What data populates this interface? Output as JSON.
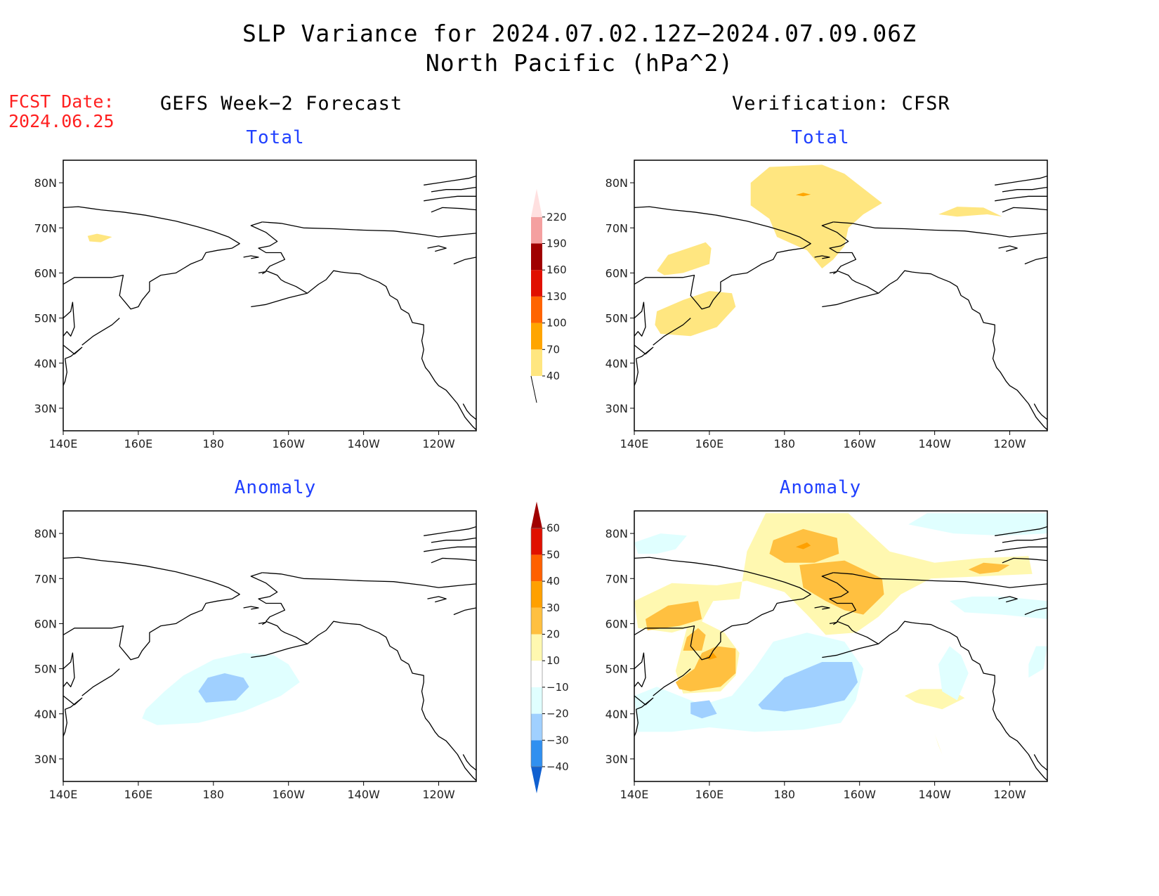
{
  "title": {
    "line1": "SLP Variance for 2024.07.02.12Z−2024.07.09.06Z",
    "line2": "North Pacific (hPa^2)"
  },
  "fcst": {
    "label": "FCST Date:",
    "date": "2024.06.25"
  },
  "columns": {
    "left": "GEFS Week−2 Forecast",
    "right": "Verification: CFSR"
  },
  "rows": {
    "top": "Total",
    "bottom": "Anomaly"
  },
  "map": {
    "lon_range": [
      140,
      250
    ],
    "lat_range": [
      25,
      85
    ],
    "x_ticks": [
      {
        "lon": 140,
        "label": "140E"
      },
      {
        "lon": 160,
        "label": "160E"
      },
      {
        "lon": 180,
        "label": "180"
      },
      {
        "lon": 200,
        "label": "160W"
      },
      {
        "lon": 220,
        "label": "140W"
      },
      {
        "lon": 240,
        "label": "120W"
      }
    ],
    "y_ticks": [
      {
        "lat": 30,
        "label": "30N"
      },
      {
        "lat": 40,
        "label": "40N"
      },
      {
        "lat": 50,
        "label": "50N"
      },
      {
        "lat": 60,
        "label": "60N"
      },
      {
        "lat": 70,
        "label": "70N"
      },
      {
        "lat": 80,
        "label": "80N"
      }
    ]
  },
  "colorbars": {
    "total": {
      "labels": [
        "40",
        "70",
        "100",
        "130",
        "160",
        "190",
        "220"
      ],
      "colors": [
        "#ffe680",
        "#ffa500",
        "#ff6400",
        "#e01000",
        "#a00000",
        "#f4a0a0",
        "#ffe0e0"
      ]
    },
    "anomaly": {
      "labels": [
        "−40",
        "−30",
        "−20",
        "−10",
        "10",
        "20",
        "30",
        "40",
        "50",
        "60"
      ],
      "colors": [
        "#1060d0",
        "#3090f0",
        "#a0d0ff",
        "#e0ffff",
        "#ffffff",
        "#fff8b0",
        "#ffc040",
        "#ffa000",
        "#ff6000",
        "#e01000",
        "#a00000"
      ]
    }
  },
  "fields": {
    "forecast_total": [
      {
        "level": "40-70",
        "color": "#ffe680",
        "pts": [
          [
            146.5,
            68.2
          ],
          [
            149,
            68.7
          ],
          [
            153,
            68
          ],
          [
            150,
            66.8
          ],
          [
            147,
            67
          ]
        ]
      }
    ],
    "forecast_anomaly": [
      {
        "level": "-20--10",
        "color": "#e0ffff",
        "pts": [
          [
            162,
            41
          ],
          [
            167,
            45
          ],
          [
            172,
            48.5
          ],
          [
            180,
            52
          ],
          [
            188,
            53.5
          ],
          [
            196,
            53
          ],
          [
            200,
            51
          ],
          [
            203,
            47
          ],
          [
            198,
            44
          ],
          [
            188,
            40.5
          ],
          [
            176,
            38
          ],
          [
            165,
            37.5
          ],
          [
            161,
            39
          ]
        ]
      },
      {
        "level": "-30--20",
        "color": "#a0d0ff",
        "pts": [
          [
            176,
            45
          ],
          [
            178.5,
            48
          ],
          [
            183,
            49
          ],
          [
            188,
            48
          ],
          [
            189.5,
            46
          ],
          [
            186,
            43
          ],
          [
            178,
            42.5
          ]
        ]
      }
    ],
    "verification_total": [
      {
        "level": "40-70",
        "color": "#ffe680",
        "pts": [
          [
            171,
            80
          ],
          [
            176,
            83.5
          ],
          [
            190,
            84
          ],
          [
            196,
            82
          ],
          [
            206,
            75.5
          ],
          [
            201,
            73
          ],
          [
            197,
            70
          ],
          [
            196,
            66
          ],
          [
            193,
            63
          ],
          [
            190,
            61
          ],
          [
            186,
            65
          ],
          [
            182,
            66.5
          ],
          [
            178,
            68
          ],
          [
            176,
            72
          ],
          [
            171,
            75
          ]
        ]
      },
      {
        "level": "40-70",
        "color": "#ffe680",
        "pts": [
          [
            146,
            60.5
          ],
          [
            149,
            64
          ],
          [
            159,
            66.8
          ],
          [
            160.5,
            65.5
          ],
          [
            160,
            62
          ],
          [
            153,
            60
          ],
          [
            148,
            59.5
          ]
        ]
      },
      {
        "level": "40-70",
        "color": "#ffe680",
        "pts": [
          [
            146,
            51.5
          ],
          [
            153,
            54
          ],
          [
            160,
            56
          ],
          [
            166,
            55.5
          ],
          [
            167,
            52.5
          ],
          [
            162,
            48
          ],
          [
            155,
            46
          ],
          [
            147,
            46.5
          ],
          [
            145.5,
            48.5
          ]
        ]
      },
      {
        "level": "40-70",
        "color": "#ffe680",
        "pts": [
          [
            221,
            73
          ],
          [
            226,
            72.5
          ],
          [
            234,
            73
          ],
          [
            238,
            72.5
          ],
          [
            233,
            74.5
          ],
          [
            226,
            74.7
          ]
        ]
      },
      {
        "level": "70-100",
        "color": "#ffa500",
        "pts": [
          [
            183,
            77.3
          ],
          [
            185,
            77.8
          ],
          [
            187,
            77.4
          ],
          [
            185,
            77
          ]
        ]
      }
    ],
    "verification_anomaly": [
      {
        "level": "10-20",
        "color": "#fff8b0",
        "pts": [
          [
            170,
            76
          ],
          [
            175,
            84.5
          ],
          [
            197,
            84.5
          ],
          [
            208,
            76
          ],
          [
            220,
            73.5
          ],
          [
            232,
            74.5
          ],
          [
            245,
            75
          ],
          [
            246,
            71
          ],
          [
            233,
            70.5
          ],
          [
            219,
            70
          ],
          [
            211,
            66.5
          ],
          [
            205,
            61.5
          ],
          [
            199,
            58
          ],
          [
            191,
            57.5
          ],
          [
            186,
            62
          ],
          [
            180,
            67
          ],
          [
            170,
            69.5
          ],
          [
            162,
            68.5
          ],
          [
            150,
            69
          ],
          [
            140,
            65
          ],
          [
            141,
            59
          ],
          [
            150,
            58
          ],
          [
            154,
            59
          ],
          [
            151,
            49.5
          ],
          [
            153,
            44.5
          ],
          [
            163,
            45
          ],
          [
            167,
            48.5
          ],
          [
            168,
            53.5
          ],
          [
            164,
            58
          ],
          [
            158,
            60.5
          ],
          [
            161,
            65
          ],
          [
            168,
            65.5
          ]
        ]
      },
      {
        "level": "10-20",
        "color": "#fff8b0",
        "pts": [
          [
            212,
            44
          ],
          [
            215,
            42.5
          ],
          [
            222,
            41
          ],
          [
            228,
            43.5
          ],
          [
            224,
            45.5
          ],
          [
            216,
            45.5
          ]
        ]
      },
      {
        "level": "10-20",
        "color": "#fff8b0",
        "pts": [
          [
            220,
            35.5
          ],
          [
            221,
            33
          ],
          [
            222,
            31
          ]
        ]
      },
      {
        "level": "20-30",
        "color": "#ffc040",
        "pts": [
          [
            184,
            73
          ],
          [
            196,
            74
          ],
          [
            206,
            70
          ],
          [
            206.5,
            66.5
          ],
          [
            201,
            62
          ],
          [
            196,
            63
          ],
          [
            191,
            65
          ],
          [
            185,
            68
          ]
        ]
      },
      {
        "level": "20-30",
        "color": "#ffc040",
        "pts": [
          [
            177,
            78.5
          ],
          [
            185,
            81
          ],
          [
            194,
            79
          ],
          [
            194.5,
            75.5
          ],
          [
            188,
            73.5
          ],
          [
            180,
            73.5
          ],
          [
            176,
            75.5
          ]
        ]
      },
      {
        "level": "20-30",
        "color": "#ffc040",
        "pts": [
          [
            143,
            61
          ],
          [
            149,
            64
          ],
          [
            157,
            65
          ],
          [
            158,
            61
          ],
          [
            152,
            59.5
          ],
          [
            143.5,
            58.5
          ]
        ]
      },
      {
        "level": "20-30",
        "color": "#ffc040",
        "pts": [
          [
            151,
            47
          ],
          [
            156,
            50
          ],
          [
            158,
            53.5
          ],
          [
            162,
            55
          ],
          [
            167,
            54.5
          ],
          [
            167,
            49
          ],
          [
            163,
            46
          ],
          [
            155,
            45
          ],
          [
            152,
            45.5
          ]
        ]
      },
      {
        "level": "20-30",
        "color": "#ffc040",
        "pts": [
          [
            153,
            54
          ],
          [
            154,
            57
          ],
          [
            157,
            59
          ],
          [
            159,
            57.5
          ],
          [
            158,
            54
          ]
        ]
      },
      {
        "level": "20-30",
        "color": "#ffc040",
        "pts": [
          [
            229,
            72
          ],
          [
            233,
            73.5
          ],
          [
            240,
            73
          ],
          [
            237,
            71.5
          ],
          [
            232,
            71
          ]
        ]
      },
      {
        "level": "30-40",
        "color": "#ffa000",
        "pts": [
          [
            183,
            77
          ],
          [
            186,
            78
          ],
          [
            187,
            77.3
          ],
          [
            185,
            76.5
          ]
        ]
      },
      {
        "level": "30-40",
        "color": "#ffa000",
        "pts": [
          [
            159,
            52.5
          ],
          [
            161,
            53.5
          ],
          [
            162,
            52.5
          ],
          [
            160,
            52
          ]
        ]
      },
      {
        "level": "-10--20",
        "color": "#e0ffff",
        "pts": [
          [
            140,
            44
          ],
          [
            146,
            46
          ],
          [
            152,
            44
          ],
          [
            158,
            42
          ],
          [
            166,
            44
          ],
          [
            172,
            50
          ],
          [
            177,
            56
          ],
          [
            186,
            58
          ],
          [
            196,
            56
          ],
          [
            201,
            50
          ],
          [
            199,
            43
          ],
          [
            195,
            38
          ],
          [
            185,
            36.5
          ],
          [
            172,
            36
          ],
          [
            160,
            37
          ],
          [
            150,
            36
          ],
          [
            141,
            36
          ]
        ]
      },
      {
        "level": "-10--20",
        "color": "#e0ffff",
        "pts": [
          [
            140,
            78
          ],
          [
            147,
            80
          ],
          [
            154,
            79.5
          ],
          [
            151,
            76.5
          ],
          [
            146,
            75.5
          ],
          [
            141,
            75.5
          ]
        ]
      },
      {
        "level": "-10--20",
        "color": "#e0ffff",
        "pts": [
          [
            213,
            82
          ],
          [
            218,
            84.5
          ],
          [
            250,
            84.5
          ],
          [
            250,
            80
          ],
          [
            238,
            79.5
          ],
          [
            225,
            80
          ]
        ]
      },
      {
        "level": "-10--20",
        "color": "#e0ffff",
        "pts": [
          [
            224,
            65
          ],
          [
            230,
            66
          ],
          [
            238,
            66
          ],
          [
            250,
            65
          ],
          [
            250,
            61
          ],
          [
            238,
            62
          ],
          [
            228,
            62.5
          ]
        ]
      },
      {
        "level": "-10--20",
        "color": "#e0ffff",
        "pts": [
          [
            224,
            55
          ],
          [
            227,
            53
          ],
          [
            229,
            49
          ],
          [
            226,
            43
          ],
          [
            222,
            45
          ],
          [
            221,
            51
          ]
        ]
      },
      {
        "level": "-10--20",
        "color": "#e0ffff",
        "pts": [
          [
            245,
            48
          ],
          [
            249,
            50
          ],
          [
            250,
            55
          ],
          [
            247,
            55
          ],
          [
            245,
            51
          ]
        ]
      },
      {
        "level": "-20--30",
        "color": "#a0d0ff",
        "pts": [
          [
            173,
            42
          ],
          [
            180,
            48
          ],
          [
            190,
            51.5
          ],
          [
            198,
            51.5
          ],
          [
            199.5,
            47
          ],
          [
            196,
            43
          ],
          [
            188,
            41.5
          ],
          [
            180,
            40.5
          ],
          [
            174,
            41
          ]
        ]
      },
      {
        "level": "-20--30",
        "color": "#a0d0ff",
        "pts": [
          [
            155,
            42.5
          ],
          [
            160,
            43
          ],
          [
            162,
            40
          ],
          [
            158,
            39
          ],
          [
            155,
            40
          ]
        ]
      }
    ]
  }
}
